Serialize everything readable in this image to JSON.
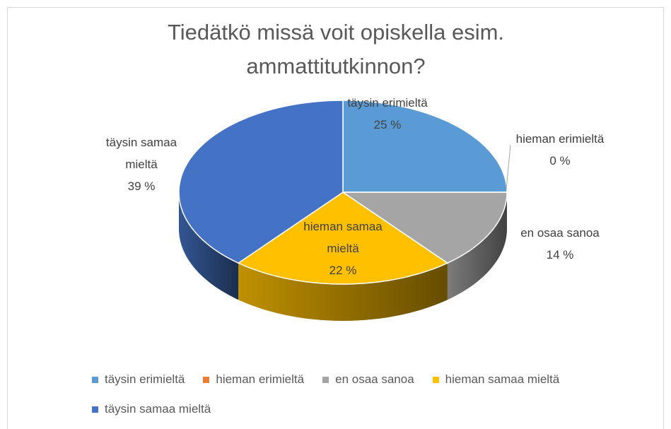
{
  "chart_data": {
    "type": "pie",
    "title": "Tiedätkö missä voit opiskella esim. ammattitutkinnon?",
    "categories": [
      "täysin erimieltä",
      "hieman erimieltä",
      "en osaa sanoa",
      "hieman samaa mieltä",
      "täysin samaa mieltä"
    ],
    "values": [
      25,
      0,
      14,
      22,
      39
    ],
    "value_labels": [
      "25 %",
      "0 %",
      "14 %",
      "22 %",
      "39 %"
    ],
    "colors": [
      "#5b9bd5",
      "#ed7d31",
      "#a5a5a5",
      "#ffc000",
      "#4472c4"
    ],
    "legend": "bottom"
  }
}
